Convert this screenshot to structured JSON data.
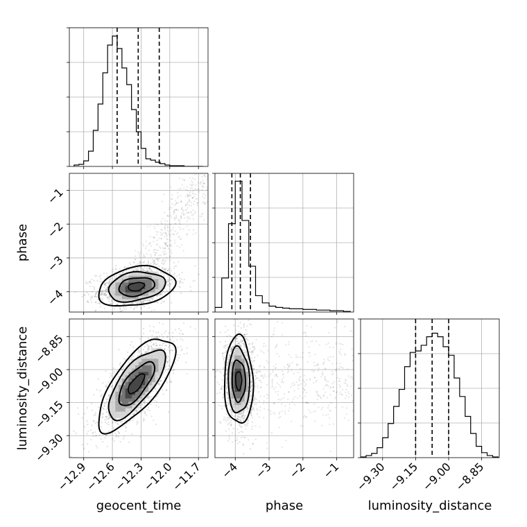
{
  "chart_data": {
    "type": "corner",
    "grid": true,
    "parameters": [
      "geocent_time",
      "phase",
      "luminosity_distance"
    ],
    "axes": {
      "geocent_time": {
        "label": "geocent_time",
        "range": [
          -13.05,
          -11.6
        ],
        "ticks": [
          -12.9,
          -12.6,
          -12.3,
          -12.0,
          -11.7
        ],
        "tick_labels": [
          "−12.9",
          "−12.6",
          "−12.3",
          "−12.0",
          "−11.7"
        ]
      },
      "phase": {
        "label": "phase",
        "range": [
          -4.6,
          -0.5
        ],
        "ticks": [
          -4,
          -3,
          -2,
          -1
        ],
        "tick_labels": [
          "−4",
          "−3",
          "−2",
          "−1"
        ]
      },
      "luminosity_distance": {
        "label": "luminosity_distance",
        "range": [
          -9.4,
          -8.77
        ],
        "ticks": [
          -9.3,
          -9.15,
          -9.0,
          -8.85
        ],
        "tick_labels": [
          "−9.30",
          "−9.15",
          "−9.00",
          "−8.85"
        ]
      }
    },
    "histograms": {
      "geocent_time": {
        "edges": [
          -13.0,
          -12.95,
          -12.9,
          -12.85,
          -12.8,
          -12.75,
          -12.7,
          -12.65,
          -12.6,
          -12.55,
          -12.5,
          -12.45,
          -12.4,
          -12.35,
          -12.3,
          -12.25,
          -12.2,
          -12.15,
          -12.1,
          -12.05,
          -12.0,
          -11.95,
          -11.9,
          -11.85,
          -11.8,
          -11.75,
          -11.7,
          -11.65
        ],
        "counts": [
          2,
          3,
          8,
          22,
          52,
          90,
          135,
          175,
          188,
          170,
          142,
          118,
          82,
          50,
          26,
          11,
          9,
          6,
          4,
          2,
          1,
          1,
          1,
          0,
          0,
          0,
          0
        ],
        "ymax": 200,
        "quantiles": [
          -12.55,
          -12.33,
          -12.11
        ]
      },
      "phase": {
        "edges": [
          -4.6,
          -4.4,
          -4.2,
          -4.0,
          -3.8,
          -3.6,
          -3.4,
          -3.2,
          -3.0,
          -2.8,
          -2.6,
          -2.4,
          -2.2,
          -2.0,
          -1.8,
          -1.6,
          -1.4,
          -1.2,
          -1.0,
          -0.8,
          -0.6
        ],
        "counts": [
          7,
          52,
          135,
          200,
          140,
          70,
          25,
          14,
          9,
          7,
          6,
          5,
          5,
          4,
          4,
          3,
          3,
          2,
          2,
          1
        ],
        "ymax": 212,
        "quantiles": [
          -4.1,
          -3.85,
          -3.55
        ]
      },
      "luminosity_distance": {
        "edges": [
          -9.4,
          -9.375,
          -9.35,
          -9.325,
          -9.3,
          -9.275,
          -9.25,
          -9.225,
          -9.2,
          -9.175,
          -9.15,
          -9.125,
          -9.1,
          -9.075,
          -9.05,
          -9.025,
          -9.0,
          -8.975,
          -8.95,
          -8.925,
          -8.9,
          -8.875,
          -8.85,
          -8.825,
          -8.8,
          -8.775
        ],
        "counts": [
          1,
          3,
          6,
          14,
          28,
          48,
          72,
          96,
          128,
          148,
          150,
          158,
          170,
          175,
          170,
          156,
          144,
          112,
          86,
          58,
          34,
          16,
          7,
          3,
          1
        ],
        "ymax": 195,
        "quantiles": [
          -9.15,
          -9.075,
          -9.0
        ]
      }
    },
    "pairs": [
      {
        "x": "geocent_time",
        "y": "phase",
        "center": [
          -12.35,
          -3.85
        ],
        "sigma": [
          0.17,
          0.25
        ],
        "rho": 0.25,
        "contour_scale": [
          0.5,
          1.1,
          1.75,
          2.35
        ],
        "tail": true
      },
      {
        "x": "geocent_time",
        "y": "luminosity_distance",
        "center": [
          -12.35,
          -9.065
        ],
        "sigma": [
          0.17,
          0.09
        ],
        "rho": 0.72,
        "contour_scale": [
          0.5,
          1.1,
          1.75,
          2.35
        ],
        "tail": false
      },
      {
        "x": "phase",
        "y": "luminosity_distance",
        "center": [
          -3.9,
          -9.05
        ],
        "sigma": [
          0.18,
          0.085
        ],
        "rho": -0.05,
        "contour_scale": [
          0.5,
          1.1,
          1.75,
          2.35
        ],
        "tail": true
      }
    ]
  }
}
